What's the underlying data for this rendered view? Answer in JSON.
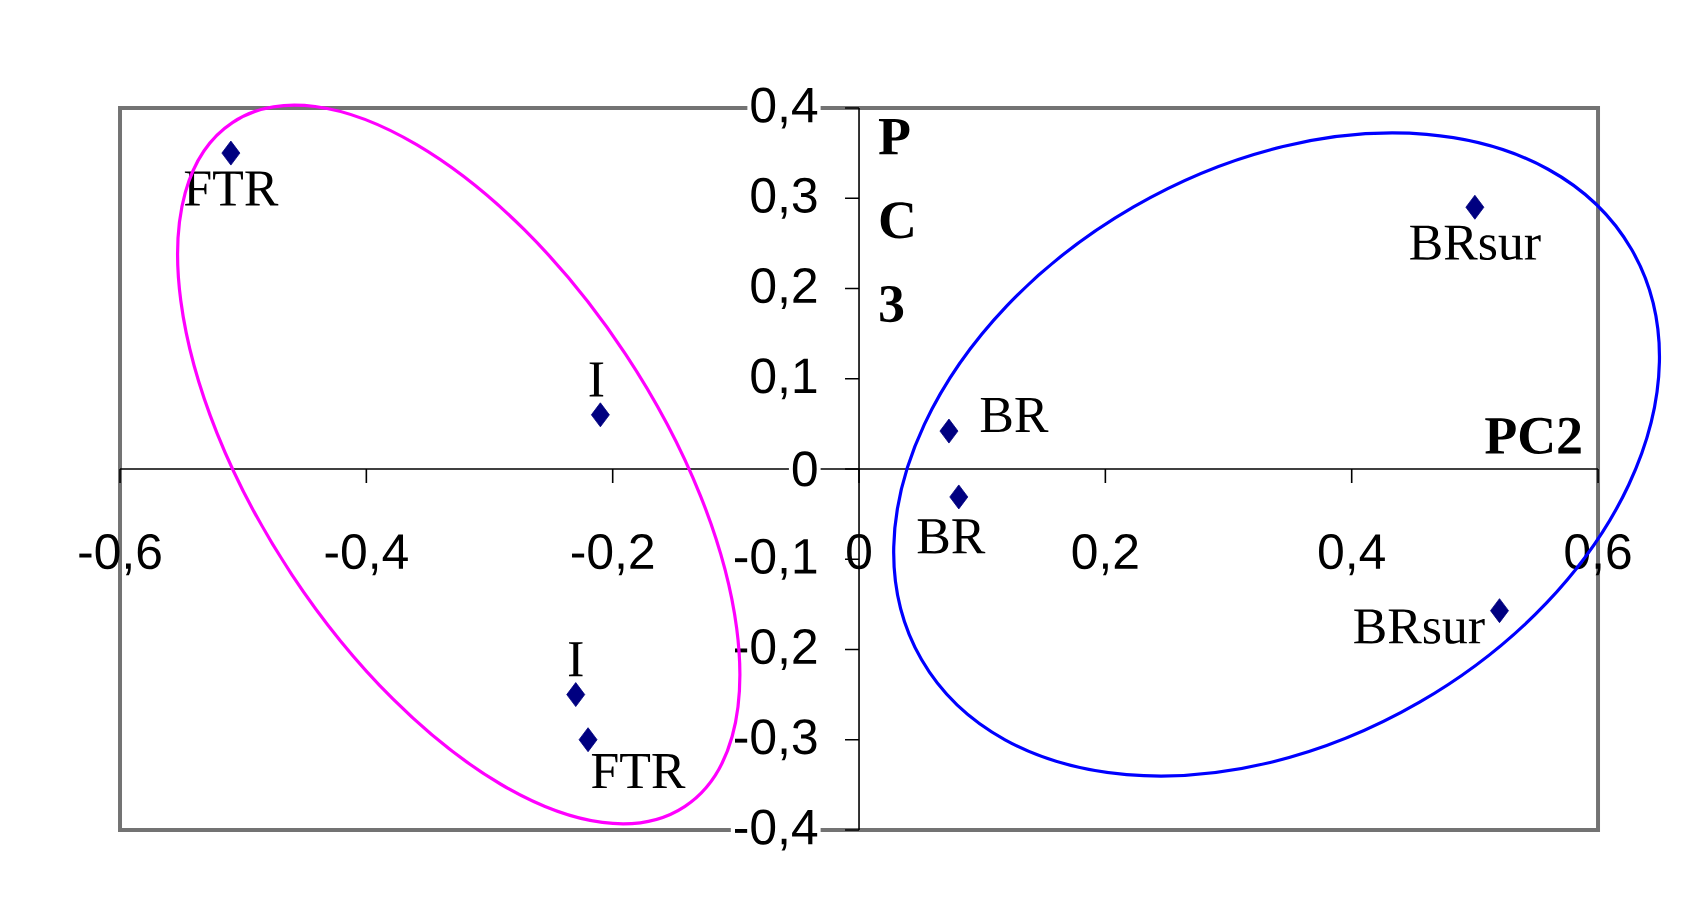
{
  "chart_data": {
    "type": "scatter",
    "xlabel": "PC2",
    "ylabel": "PC3",
    "x": [
      -0.51,
      -0.21,
      -0.23,
      -0.22,
      0.073,
      0.081,
      0.5,
      0.52
    ],
    "values": [
      0.35,
      0.06,
      -0.25,
      -0.3,
      0.042,
      -0.031,
      0.29,
      -0.157
    ],
    "color": "#000080",
    "marker": "diamond",
    "xlim": [
      -0.6,
      0.6
    ],
    "xticks": [
      {
        "value": -0.6,
        "label": "-0,6"
      },
      {
        "value": -0.4,
        "label": "-0,4"
      },
      {
        "value": -0.2,
        "label": "-0,2"
      },
      0,
      {
        "value": 0.2,
        "label": "0,2"
      },
      {
        "value": 0.4,
        "label": "0,4"
      },
      {
        "value": 0.6,
        "label": "0,6"
      }
    ],
    "ylim": [
      -0.4,
      0.4
    ],
    "yticks": [
      {
        "value": -0.4,
        "label": "-0,4"
      },
      {
        "value": -0.3,
        "label": "-0,3"
      },
      {
        "value": -0.2,
        "label": "-0,2"
      },
      {
        "value": -0.1,
        "label": "-0,1"
      },
      0,
      {
        "value": 0.1,
        "label": "0,1"
      },
      {
        "value": 0.2,
        "label": "0,2"
      },
      {
        "value": 0.3,
        "label": "0,3"
      },
      {
        "value": 0.4,
        "label": "0,4"
      }
    ],
    "annotations": [
      {
        "text": "FTR",
        "x": -0.51,
        "y": 0.35
      },
      {
        "text": "I",
        "x": -0.21,
        "y": 0.06
      },
      {
        "text": "I",
        "x": -0.23,
        "y": -0.25
      },
      {
        "text": "FTR",
        "x": -0.22,
        "y": -0.3
      },
      {
        "text": "BR",
        "x": 0.073,
        "y": 0.042
      },
      {
        "text": "BR",
        "x": 0.081,
        "y": -0.031
      },
      {
        "text": "BRsur",
        "x": 0.5,
        "y": 0.29
      },
      {
        "text": "BRsur",
        "x": 0.52,
        "y": -0.157
      }
    ]
  }
}
